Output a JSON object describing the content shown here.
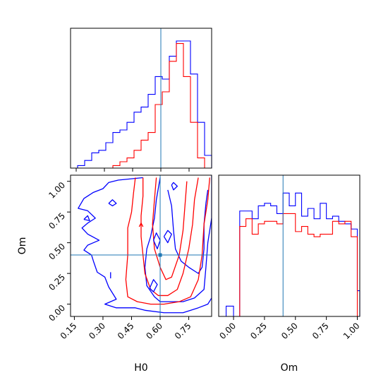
{
  "chart_data": {
    "type": "corner",
    "parameters": [
      "H0",
      "Om"
    ],
    "truth": {
      "H0": 0.6,
      "Om": 0.4
    },
    "colors": {
      "series_a": "#0000ff",
      "series_b": "#ff0000",
      "truth": "#1f77b4"
    },
    "panels": [
      {
        "id": "hist_h0",
        "type": "histogram",
        "xlim": [
          0.12,
          0.87
        ],
        "bin_edges": [
          0.12,
          0.1575,
          0.195,
          0.2325,
          0.27,
          0.3075,
          0.345,
          0.3825,
          0.42,
          0.4575,
          0.495,
          0.5325,
          0.57,
          0.6075,
          0.645,
          0.6825,
          0.72,
          0.7575,
          0.795,
          0.8325,
          0.87
        ],
        "series": [
          {
            "color": "blue",
            "counts": [
              0.0,
              0.02,
              0.06,
              0.12,
              0.14,
              0.2,
              0.28,
              0.3,
              0.36,
              0.44,
              0.48,
              0.58,
              0.72,
              0.7,
              0.88,
              1.0,
              1.0,
              0.74,
              0.36,
              0.1
            ]
          },
          {
            "color": "red",
            "counts": [
              0.0,
              0.0,
              0.0,
              0.0,
              0.0,
              0.0,
              0.02,
              0.05,
              0.08,
              0.14,
              0.22,
              0.28,
              0.5,
              0.6,
              0.84,
              0.98,
              0.72,
              0.36,
              0.08,
              0.0
            ]
          }
        ]
      },
      {
        "id": "hist_om",
        "type": "histogram",
        "xlim": [
          -0.12,
          1.02
        ],
        "xticks": [
          "0.00",
          "0.25",
          "0.50",
          "0.75",
          "1.00"
        ],
        "xlabel": "Om",
        "bin_edges": [
          -0.06,
          0.0,
          0.05,
          0.1,
          0.15,
          0.2,
          0.25,
          0.3,
          0.35,
          0.4,
          0.45,
          0.5,
          0.55,
          0.6,
          0.65,
          0.7,
          0.75,
          0.8,
          0.85,
          0.9,
          0.95,
          1.0,
          1.02
        ],
        "series": [
          {
            "color": "blue",
            "counts": [
              0.08,
              0.0,
              0.82,
              0.82,
              0.76,
              0.86,
              0.88,
              0.86,
              0.8,
              0.96,
              0.86,
              0.96,
              0.78,
              0.84,
              0.76,
              0.88,
              0.76,
              0.78,
              0.74,
              0.72,
              0.68,
              0.2
            ]
          },
          {
            "color": "red",
            "counts": [
              0.0,
              0.0,
              0.7,
              0.76,
              0.64,
              0.72,
              0.74,
              0.74,
              0.72,
              0.8,
              0.8,
              0.66,
              0.7,
              0.64,
              0.62,
              0.64,
              0.64,
              0.74,
              0.72,
              0.74,
              0.62,
              0.0
            ]
          }
        ]
      },
      {
        "id": "contour_h0_om",
        "type": "contour",
        "xlim": [
          0.13,
          0.87
        ],
        "ylim": [
          -0.1,
          1.05
        ],
        "xticks": [
          "0.15",
          "0.30",
          "0.45",
          "0.60",
          "0.75"
        ],
        "yticks": [
          "0.00",
          "0.25",
          "0.50",
          "0.75",
          "1.00"
        ],
        "xlabel": "H0",
        "ylabel": "Om",
        "contours": [
          {
            "color": "blue",
            "points": [
              [
                0.51,
                1.03
              ],
              [
                0.38,
                1.01
              ],
              [
                0.33,
                0.99
              ],
              [
                0.3,
                0.94
              ],
              [
                0.25,
                0.91
              ],
              [
                0.2,
                0.86
              ],
              [
                0.17,
                0.78
              ],
              [
                0.22,
                0.76
              ],
              [
                0.26,
                0.7
              ],
              [
                0.22,
                0.66
              ],
              [
                0.19,
                0.62
              ],
              [
                0.22,
                0.57
              ],
              [
                0.28,
                0.52
              ],
              [
                0.22,
                0.48
              ],
              [
                0.2,
                0.44
              ],
              [
                0.24,
                0.4
              ],
              [
                0.25,
                0.35
              ],
              [
                0.27,
                0.26
              ],
              [
                0.31,
                0.22
              ],
              [
                0.33,
                0.14
              ],
              [
                0.37,
                0.04
              ],
              [
                0.31,
                0.0
              ],
              [
                0.37,
                -0.03
              ],
              [
                0.47,
                -0.03
              ],
              [
                0.52,
                -0.05
              ],
              [
                0.62,
                -0.07
              ],
              [
                0.72,
                -0.07
              ],
              [
                0.8,
                -0.03
              ],
              [
                0.85,
                0.0
              ],
              [
                0.87,
                0.05
              ],
              [
                0.87,
                1.05
              ]
            ]
          },
          {
            "color": "blue",
            "points": [
              [
                0.6,
                1.03
              ],
              [
                0.58,
                0.85
              ],
              [
                0.57,
                0.7
              ],
              [
                0.55,
                0.55
              ],
              [
                0.53,
                0.45
              ],
              [
                0.52,
                0.3
              ],
              [
                0.53,
                0.15
              ],
              [
                0.57,
                0.06
              ],
              [
                0.6,
                0.02
              ],
              [
                0.66,
                0.02
              ],
              [
                0.72,
                0.02
              ],
              [
                0.78,
                0.05
              ],
              [
                0.83,
                0.12
              ],
              [
                0.84,
                0.3
              ],
              [
                0.85,
                0.5
              ],
              [
                0.87,
                0.7
              ]
            ]
          },
          {
            "color": "blue",
            "points": [
              [
                0.64,
                0.93
              ],
              [
                0.66,
                0.8
              ],
              [
                0.67,
                0.6
              ],
              [
                0.68,
                0.45
              ],
              [
                0.71,
                0.35
              ],
              [
                0.75,
                0.3
              ],
              [
                0.8,
                0.25
              ],
              [
                0.82,
                0.3
              ],
              [
                0.83,
                0.45
              ],
              [
                0.83,
                0.65
              ],
              [
                0.84,
                0.82
              ],
              [
                0.85,
                0.93
              ]
            ]
          },
          {
            "color": "red",
            "points": [
              [
                0.47,
                1.03
              ],
              [
                0.46,
                0.9
              ],
              [
                0.45,
                0.75
              ],
              [
                0.43,
                0.62
              ],
              [
                0.43,
                0.4
              ],
              [
                0.42,
                0.2
              ],
              [
                0.43,
                0.06
              ],
              [
                0.48,
                0.02
              ],
              [
                0.55,
                0.0
              ],
              [
                0.62,
                0.0
              ],
              [
                0.7,
                0.02
              ],
              [
                0.76,
                0.06
              ],
              [
                0.8,
                0.2
              ],
              [
                0.82,
                0.4
              ],
              [
                0.83,
                0.65
              ],
              [
                0.85,
                0.85
              ],
              [
                0.86,
                1.03
              ]
            ]
          },
          {
            "color": "red",
            "points": [
              [
                0.51,
                1.03
              ],
              [
                0.51,
                0.88
              ],
              [
                0.5,
                0.72
              ],
              [
                0.5,
                0.55
              ],
              [
                0.51,
                0.4
              ],
              [
                0.52,
                0.25
              ],
              [
                0.55,
                0.12
              ],
              [
                0.59,
                0.07
              ],
              [
                0.64,
                0.07
              ],
              [
                0.69,
                0.12
              ],
              [
                0.72,
                0.25
              ],
              [
                0.75,
                0.45
              ],
              [
                0.77,
                0.65
              ],
              [
                0.78,
                0.85
              ],
              [
                0.8,
                1.03
              ]
            ]
          },
          {
            "color": "red",
            "points": [
              [
                0.58,
                1.03
              ],
              [
                0.57,
                0.85
              ],
              [
                0.56,
                0.65
              ],
              [
                0.57,
                0.45
              ],
              [
                0.6,
                0.3
              ],
              [
                0.63,
                0.2
              ],
              [
                0.66,
                0.22
              ],
              [
                0.7,
                0.4
              ],
              [
                0.72,
                0.6
              ],
              [
                0.73,
                0.8
              ],
              [
                0.74,
                1.0
              ]
            ]
          },
          {
            "color": "blue",
            "points": [
              [
                0.565,
                0.52
              ],
              [
                0.58,
                0.58
              ],
              [
                0.6,
                0.52
              ],
              [
                0.585,
                0.45
              ],
              [
                0.565,
                0.52
              ]
            ]
          },
          {
            "color": "blue",
            "points": [
              [
                0.545,
                0.13
              ],
              [
                0.565,
                0.2
              ],
              [
                0.585,
                0.16
              ],
              [
                0.565,
                0.1
              ],
              [
                0.545,
                0.13
              ]
            ]
          },
          {
            "color": "blue",
            "points": [
              [
                0.33,
                0.82
              ],
              [
                0.35,
                0.85
              ],
              [
                0.37,
                0.82
              ],
              [
                0.35,
                0.8
              ],
              [
                0.33,
                0.82
              ]
            ]
          },
          {
            "color": "blue",
            "points": [
              [
                0.2,
                0.69
              ],
              [
                0.22,
                0.72
              ],
              [
                0.23,
                0.68
              ],
              [
                0.2,
                0.69
              ]
            ]
          },
          {
            "color": "blue",
            "points": [
              [
                0.62,
                0.55
              ],
              [
                0.64,
                0.6
              ],
              [
                0.66,
                0.57
              ],
              [
                0.64,
                0.5
              ],
              [
                0.62,
                0.55
              ]
            ]
          },
          {
            "color": "blue",
            "points": [
              [
                0.66,
                0.97
              ],
              [
                0.67,
                0.93
              ],
              [
                0.69,
                0.96
              ],
              [
                0.67,
                0.99
              ],
              [
                0.66,
                0.97
              ]
            ]
          },
          {
            "color": "blue",
            "points": [
              [
                0.34,
                0.21
              ],
              [
                0.34,
                0.26
              ]
            ]
          },
          {
            "color": "red",
            "points": [
              [
                0.49,
                0.63
              ],
              [
                0.5,
                0.66
              ],
              [
                0.51,
                0.63
              ]
            ]
          }
        ]
      }
    ]
  }
}
